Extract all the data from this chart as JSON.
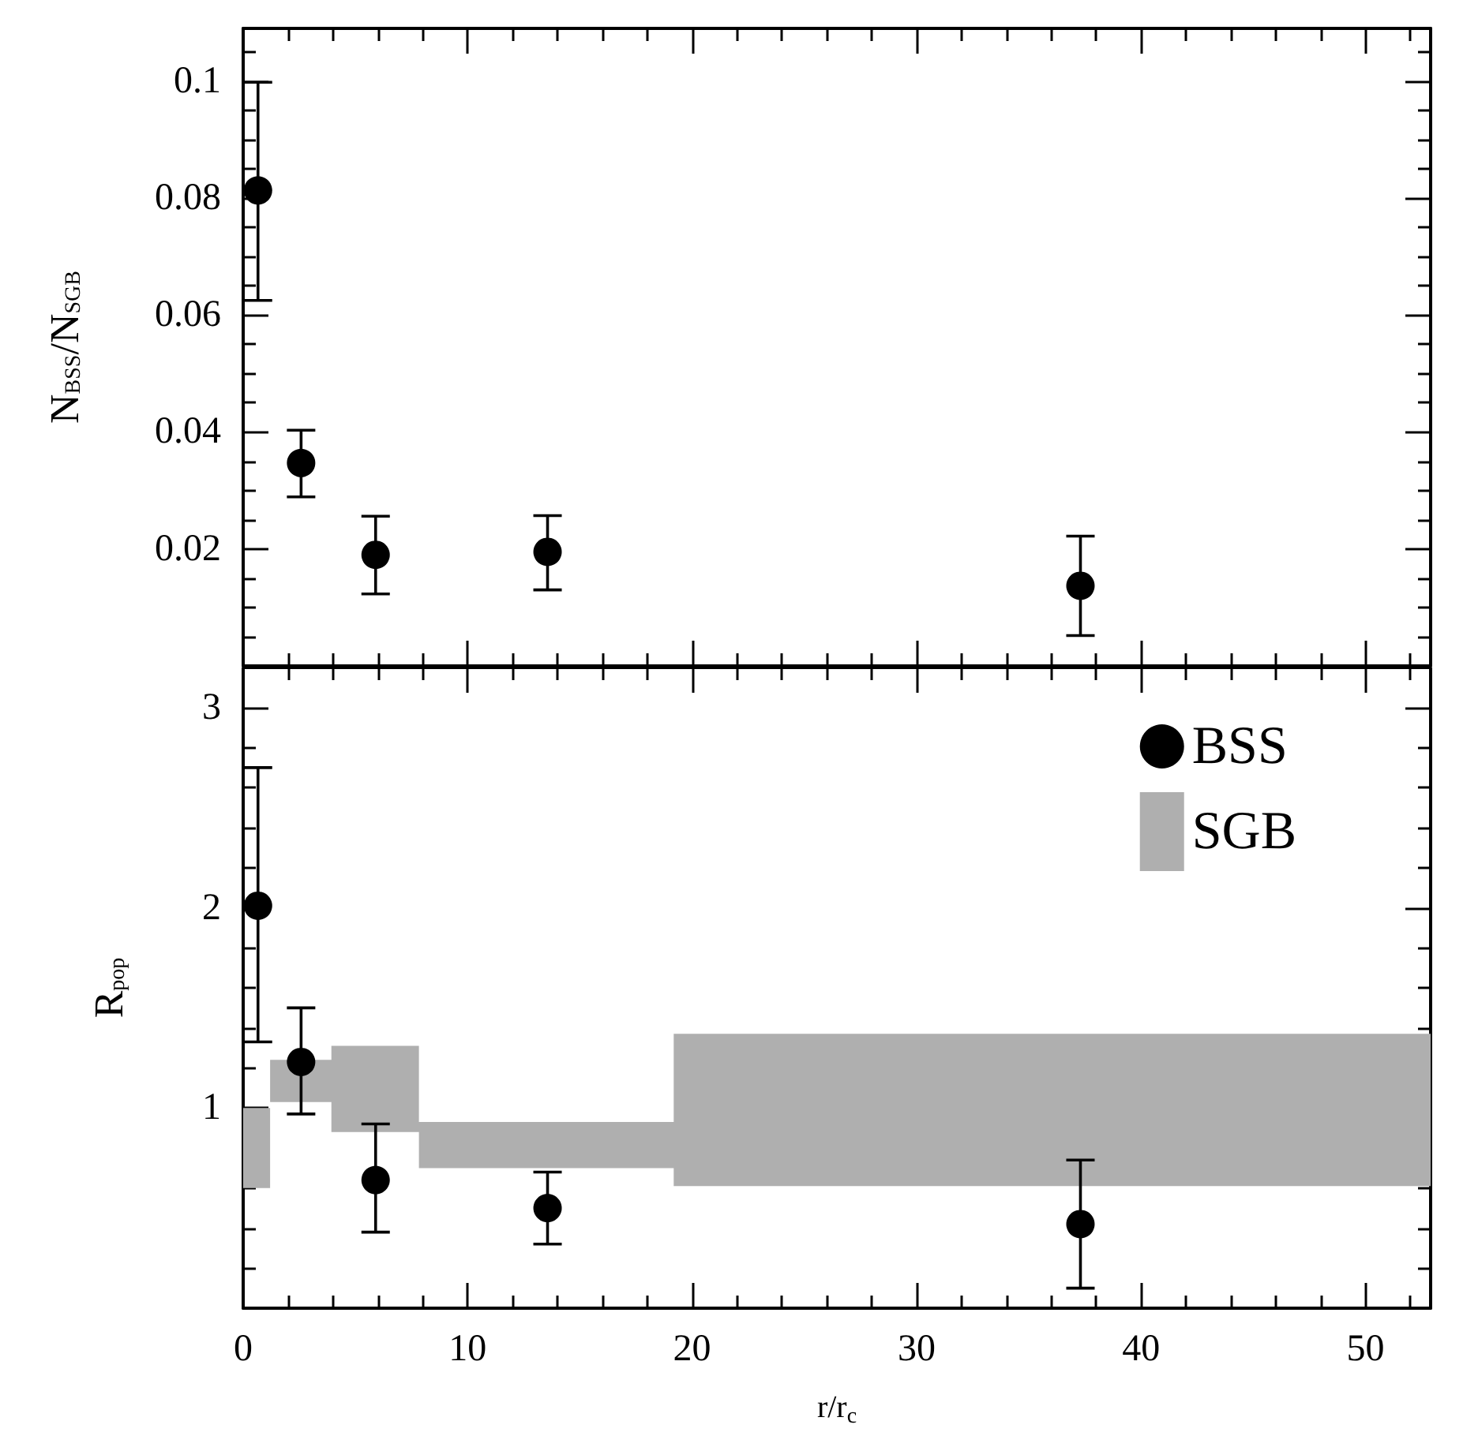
{
  "chart_data": [
    {
      "type": "scatter",
      "ylabel": "N$_{BSS}$/N$_{SGB}$",
      "xlim": [
        0,
        52.9
      ],
      "xticks": [
        0,
        10,
        20,
        30,
        40,
        50
      ],
      "ylim": [
        0,
        0.109
      ],
      "yticks": [
        0.02,
        0.04,
        0.06,
        0.08,
        0.1
      ],
      "tick_labels": "y",
      "marker": "circle",
      "legend": false,
      "series": [
        {
          "color": "#000000",
          "x": [
            0.66,
            2.58,
            5.9,
            13.56,
            37.3
          ],
          "values": [
            0.0813,
            0.0347,
            0.019,
            0.0195,
            0.0137
          ],
          "errors": [
            [
              0.0625,
              0.0998
            ],
            [
              0.0289,
              0.0403
            ],
            [
              0.0123,
              0.0256
            ],
            [
              0.013,
              0.0257
            ],
            [
              0.0052,
              0.0222
            ]
          ]
        }
      ]
    },
    {
      "type": "scatter",
      "xlabel": "r/r$_{c}$",
      "ylabel": "R$_{pop}$",
      "xlim": [
        0,
        52.9
      ],
      "xticks": [
        0,
        10,
        20,
        30,
        40,
        50
      ],
      "ylim": [
        0,
        3.2
      ],
      "yticks": [
        1,
        2,
        3
      ],
      "marker": "circle",
      "legend": "top right",
      "series": [
        {
          "name": "SGB",
          "type": "area",
          "color": "#afafaf",
          "x": [
            0,
            1.2,
            1.2,
            3.93,
            3.93,
            7.83,
            7.83,
            19.18,
            19.18,
            52.9
          ],
          "lower": [
            0.6,
            0.6,
            1.03,
            1.03,
            0.88,
            0.88,
            0.7,
            0.7,
            0.61,
            0.61
          ],
          "upper": [
            1.0,
            1.0,
            1.24,
            1.24,
            1.31,
            1.31,
            0.93,
            0.93,
            1.37,
            1.37
          ],
          "values": [
            null,
            null,
            null,
            null,
            null,
            null,
            null,
            null,
            null,
            null
          ]
        },
        {
          "name": "BSS",
          "color": "#000000",
          "x": [
            0.66,
            2.58,
            5.9,
            13.56,
            37.3
          ],
          "values": [
            2.01,
            1.23,
            0.64,
            0.5,
            0.42
          ],
          "errors": [
            [
              1.33,
              2.7
            ],
            [
              0.97,
              1.5
            ],
            [
              0.38,
              0.92
            ],
            [
              0.32,
              0.68
            ],
            [
              0.1,
              0.74
            ]
          ]
        }
      ]
    }
  ]
}
